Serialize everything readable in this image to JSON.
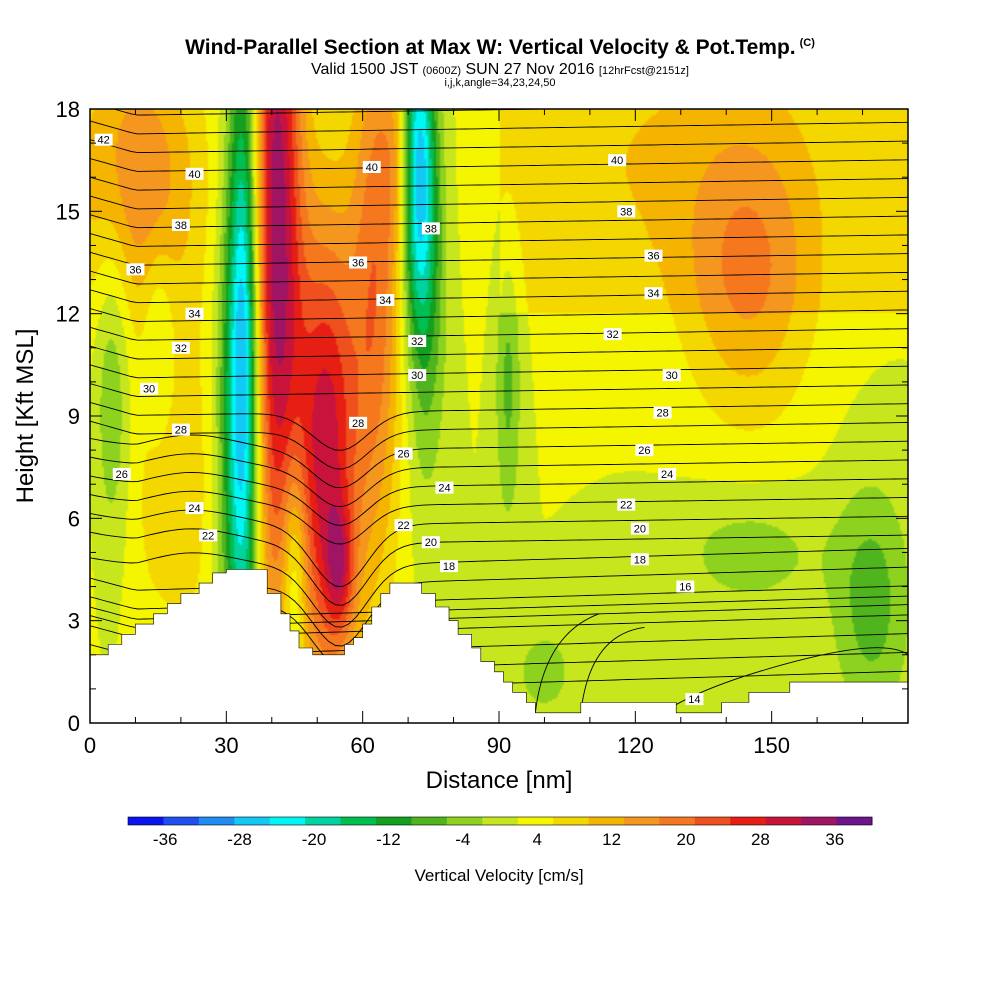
{
  "header": {
    "title": "Wind-Parallel Section at Max W: Vertical Velocity & Pot.Temp.",
    "title_mark": "(C)",
    "subtitle_valid": "Valid 1500 JST",
    "subtitle_utc": "(0600Z)",
    "subtitle_date": "SUN 27 Nov 2016",
    "subtitle_fcst": "[12hrFcst@2151z]",
    "subtitle_indices": "i,j,k,angle=34,23,24,50"
  },
  "chart_data": {
    "type": "heatmap",
    "xlabel": "Distance [nm]",
    "ylabel": "Height [Kft MSL]",
    "xlim": [
      0,
      180
    ],
    "ylim": [
      0,
      18
    ],
    "x_ticks": [
      0,
      30,
      60,
      90,
      120,
      150
    ],
    "y_ticks": [
      0,
      3,
      6,
      9,
      12,
      15,
      18
    ],
    "grid": false,
    "colorbar": {
      "title": "Vertical Velocity [cm/s]",
      "tick_labels": [
        "-36",
        "-28",
        "-20",
        "-12",
        "-4",
        "4",
        "12",
        "20",
        "28",
        "36"
      ],
      "range": [
        -40,
        40
      ],
      "step": 4,
      "colors": [
        "#0a14f0",
        "#1e50f0",
        "#1e8cf0",
        "#14c8f5",
        "#00f5f5",
        "#00d2a0",
        "#00be50",
        "#14a01e",
        "#50b41e",
        "#8cd21e",
        "#c8e61e",
        "#f5f500",
        "#f5d700",
        "#f5b400",
        "#f5961e",
        "#f5781e",
        "#f0501e",
        "#e61e14",
        "#c8143c",
        "#a01464",
        "#6e148c"
      ]
    },
    "terrain": [
      [
        0,
        2
      ],
      [
        4,
        2
      ],
      [
        4,
        2.3
      ],
      [
        7,
        2.3
      ],
      [
        7,
        2.6
      ],
      [
        10,
        2.6
      ],
      [
        10,
        2.9
      ],
      [
        14,
        2.9
      ],
      [
        14,
        3.2
      ],
      [
        17,
        3.2
      ],
      [
        17,
        3.5
      ],
      [
        20,
        3.5
      ],
      [
        20,
        3.8
      ],
      [
        24,
        3.8
      ],
      [
        24,
        4.1
      ],
      [
        27,
        4.1
      ],
      [
        27,
        4.4
      ],
      [
        30,
        4.4
      ],
      [
        30,
        4.5
      ],
      [
        36,
        4.5
      ],
      [
        36,
        4.5
      ],
      [
        39,
        4.5
      ],
      [
        39,
        3.8
      ],
      [
        42,
        3.8
      ],
      [
        42,
        3.2
      ],
      [
        44,
        3.2
      ],
      [
        44,
        2.7
      ],
      [
        46,
        2.7
      ],
      [
        46,
        2.2
      ],
      [
        49,
        2.2
      ],
      [
        49,
        2.0
      ],
      [
        56,
        2.0
      ],
      [
        56,
        2.3
      ],
      [
        58,
        2.3
      ],
      [
        58,
        2.5
      ],
      [
        60,
        2.5
      ],
      [
        60,
        2.9
      ],
      [
        62,
        2.9
      ],
      [
        62,
        3.4
      ],
      [
        64,
        3.4
      ],
      [
        64,
        3.8
      ],
      [
        66,
        3.8
      ],
      [
        66,
        4.1
      ],
      [
        73,
        4.1
      ],
      [
        73,
        3.8
      ],
      [
        76,
        3.8
      ],
      [
        76,
        3.4
      ],
      [
        79,
        3.4
      ],
      [
        79,
        3.0
      ],
      [
        81,
        3.0
      ],
      [
        81,
        2.6
      ],
      [
        84,
        2.6
      ],
      [
        84,
        2.2
      ],
      [
        86,
        2.2
      ],
      [
        86,
        1.8
      ],
      [
        89,
        1.8
      ],
      [
        89,
        1.5
      ],
      [
        91,
        1.5
      ],
      [
        91,
        1.2
      ],
      [
        93,
        1.2
      ],
      [
        93,
        0.9
      ],
      [
        96,
        0.9
      ],
      [
        96,
        0.6
      ],
      [
        98,
        0.6
      ],
      [
        98,
        0.3
      ],
      [
        108,
        0.3
      ],
      [
        108,
        0.6
      ],
      [
        129,
        0.6
      ],
      [
        129,
        0.3
      ],
      [
        139,
        0.3
      ],
      [
        139,
        0.6
      ],
      [
        145,
        0.6
      ],
      [
        145,
        0.9
      ],
      [
        154,
        0.9
      ],
      [
        154,
        1.2
      ],
      [
        180,
        1.2
      ]
    ],
    "updrafts": [
      {
        "x": 41,
        "z": 15,
        "sx": 4,
        "sz": 8,
        "w": 34
      },
      {
        "x": 52,
        "z": 8,
        "sx": 5,
        "sz": 5,
        "w": 30
      },
      {
        "x": 55,
        "z": 4.5,
        "sx": 2.2,
        "sz": 1.3,
        "w": 14
      },
      {
        "x": 63,
        "z": 13,
        "sx": 4,
        "sz": 6,
        "w": 18
      },
      {
        "x": 69,
        "z": 16.5,
        "sx": 3,
        "sz": 2,
        "w": 10
      }
    ],
    "downdrafts": [
      {
        "x": 34,
        "z": 11,
        "sx": 2.5,
        "sz": 7,
        "w": -32
      },
      {
        "x": 31,
        "z": 8,
        "sx": 3,
        "sz": 5,
        "w": -12
      },
      {
        "x": 45,
        "z": 4.5,
        "sx": 2,
        "sz": 2.5,
        "w": -14
      },
      {
        "x": 72,
        "z": 16.5,
        "sx": 2.5,
        "sz": 3,
        "w": -30
      },
      {
        "x": 74,
        "z": 13,
        "sx": 3,
        "sz": 4,
        "w": -12
      },
      {
        "x": 5,
        "z": 10,
        "sx": 3,
        "sz": 4,
        "w": -10
      },
      {
        "x": 15,
        "z": 11.5,
        "sx": 2.5,
        "sz": 2,
        "w": -7
      },
      {
        "x": 92,
        "z": 10,
        "sx": 2,
        "sz": 3,
        "w": -9
      },
      {
        "x": 172,
        "z": 3.5,
        "sx": 6,
        "sz": 2.5,
        "w": -10
      },
      {
        "x": 145,
        "z": 5,
        "sx": 12,
        "sz": 1.3,
        "w": -6
      },
      {
        "x": 100,
        "z": 1.5,
        "sx": 5,
        "sz": 1,
        "w": -6
      }
    ],
    "warm_regions": [
      {
        "x": 145,
        "z": 13,
        "sx": 10,
        "sz": 3,
        "w": 12
      },
      {
        "x": 10,
        "z": 16,
        "sx": 10,
        "sz": 3,
        "w": 16
      },
      {
        "x": 125,
        "z": 16.5,
        "sx": 25,
        "sz": 3,
        "w": 4
      },
      {
        "x": 20,
        "z": 7,
        "sx": 12,
        "sz": 4,
        "w": 6
      }
    ],
    "theta_contour_labels": [
      {
        "v": 42,
        "x": 3,
        "z": 17.1
      },
      {
        "v": 40,
        "x": 23,
        "z": 16.1
      },
      {
        "v": 40,
        "x": 62,
        "z": 16.3
      },
      {
        "v": 40,
        "x": 116,
        "z": 16.5
      },
      {
        "v": 38,
        "x": 20,
        "z": 14.6
      },
      {
        "v": 38,
        "x": 75,
        "z": 14.5
      },
      {
        "v": 38,
        "x": 118,
        "z": 15.0
      },
      {
        "v": 36,
        "x": 10,
        "z": 13.3
      },
      {
        "v": 36,
        "x": 59,
        "z": 13.5
      },
      {
        "v": 36,
        "x": 124,
        "z": 13.7
      },
      {
        "v": 34,
        "x": 23,
        "z": 12.0
      },
      {
        "v": 34,
        "x": 65,
        "z": 12.4
      },
      {
        "v": 34,
        "x": 124,
        "z": 12.6
      },
      {
        "v": 32,
        "x": 20,
        "z": 11.0
      },
      {
        "v": 32,
        "x": 72,
        "z": 11.2
      },
      {
        "v": 32,
        "x": 115,
        "z": 11.4
      },
      {
        "v": 30,
        "x": 13,
        "z": 9.8
      },
      {
        "v": 30,
        "x": 72,
        "z": 10.2
      },
      {
        "v": 30,
        "x": 128,
        "z": 10.2
      },
      {
        "v": 28,
        "x": 20,
        "z": 8.6
      },
      {
        "v": 28,
        "x": 59,
        "z": 8.8
      },
      {
        "v": 28,
        "x": 126,
        "z": 9.1
      },
      {
        "v": 26,
        "x": 7,
        "z": 7.3
      },
      {
        "v": 26,
        "x": 69,
        "z": 7.9
      },
      {
        "v": 26,
        "x": 122,
        "z": 8.0
      },
      {
        "v": 24,
        "x": 23,
        "z": 6.3
      },
      {
        "v": 24,
        "x": 78,
        "z": 6.9
      },
      {
        "v": 24,
        "x": 127,
        "z": 7.3
      },
      {
        "v": 22,
        "x": 26,
        "z": 5.5
      },
      {
        "v": 22,
        "x": 69,
        "z": 5.8
      },
      {
        "v": 22,
        "x": 118,
        "z": 6.4
      },
      {
        "v": 20,
        "x": 75,
        "z": 5.3
      },
      {
        "v": 20,
        "x": 121,
        "z": 5.7
      },
      {
        "v": 18,
        "x": 79,
        "z": 4.6
      },
      {
        "v": 18,
        "x": 121,
        "z": 4.8
      },
      {
        "v": 16,
        "x": 131,
        "z": 4.0
      },
      {
        "v": 14,
        "x": 133,
        "z": 0.7
      }
    ]
  }
}
